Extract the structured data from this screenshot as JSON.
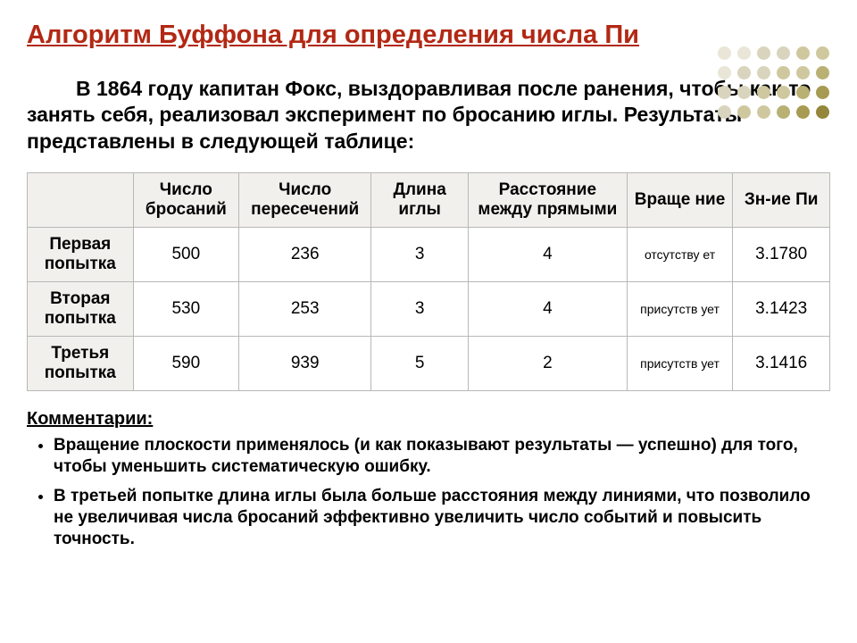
{
  "title": {
    "text": "Алгоритм Буффона для определения числа Пи",
    "color": "#b22814",
    "fontsize": 29
  },
  "intro": "В 1864 году капитан Фокс, выздоравливая после ранения, чтобы как-то занять себя, реализовал эксперимент по бросанию иглы. Результаты представлены в следующей таблице:",
  "table": {
    "header_bg": "#f2f0ed",
    "border_color": "#b8b8b8",
    "columns": [
      "",
      "Число бросаний",
      "Число пересечений",
      "Длина иглы",
      "Расстояние между прямыми",
      "Враще ние",
      "Зн-ие Пи"
    ],
    "rows": [
      {
        "label": "Первая попытка",
        "cells": [
          "500",
          "236",
          "3",
          "4",
          "отсутству ет",
          "3.1780"
        ]
      },
      {
        "label": "Вторая попытка",
        "cells": [
          "530",
          "253",
          "3",
          "4",
          "присутств ует",
          "3.1423"
        ]
      },
      {
        "label": "Третья попытка",
        "cells": [
          "590",
          "939",
          "5",
          "2",
          "присутств ует",
          "3.1416"
        ]
      }
    ]
  },
  "comments": {
    "label": "Комментарии:",
    "items": [
      "Вращение плоскости применялось (и как показывают результаты — успешно) для того, чтобы уменьшить систематическую ошибку.",
      "В третьей попытке длина иглы была больше расстояния между линиями, что позволило не увеличивая числа бросаний эффективно увеличить число событий и повысить точность."
    ]
  },
  "decor": {
    "dot_colors": [
      "#e9e6d8",
      "#e9e6d8",
      "#d9d4bd",
      "#d9d4bd",
      "#cfc89f",
      "#cfc89f",
      "#e9e6d8",
      "#d9d4bd",
      "#d9d4bd",
      "#cfc89f",
      "#cfc89f",
      "#b9b074",
      "#d9d4bd",
      "#d9d4bd",
      "#cfc89f",
      "#cfc89f",
      "#b9b074",
      "#a79a52",
      "#d9d4bd",
      "#cfc89f",
      "#cfc89f",
      "#b9b074",
      "#a79a52",
      "#94863a"
    ]
  }
}
